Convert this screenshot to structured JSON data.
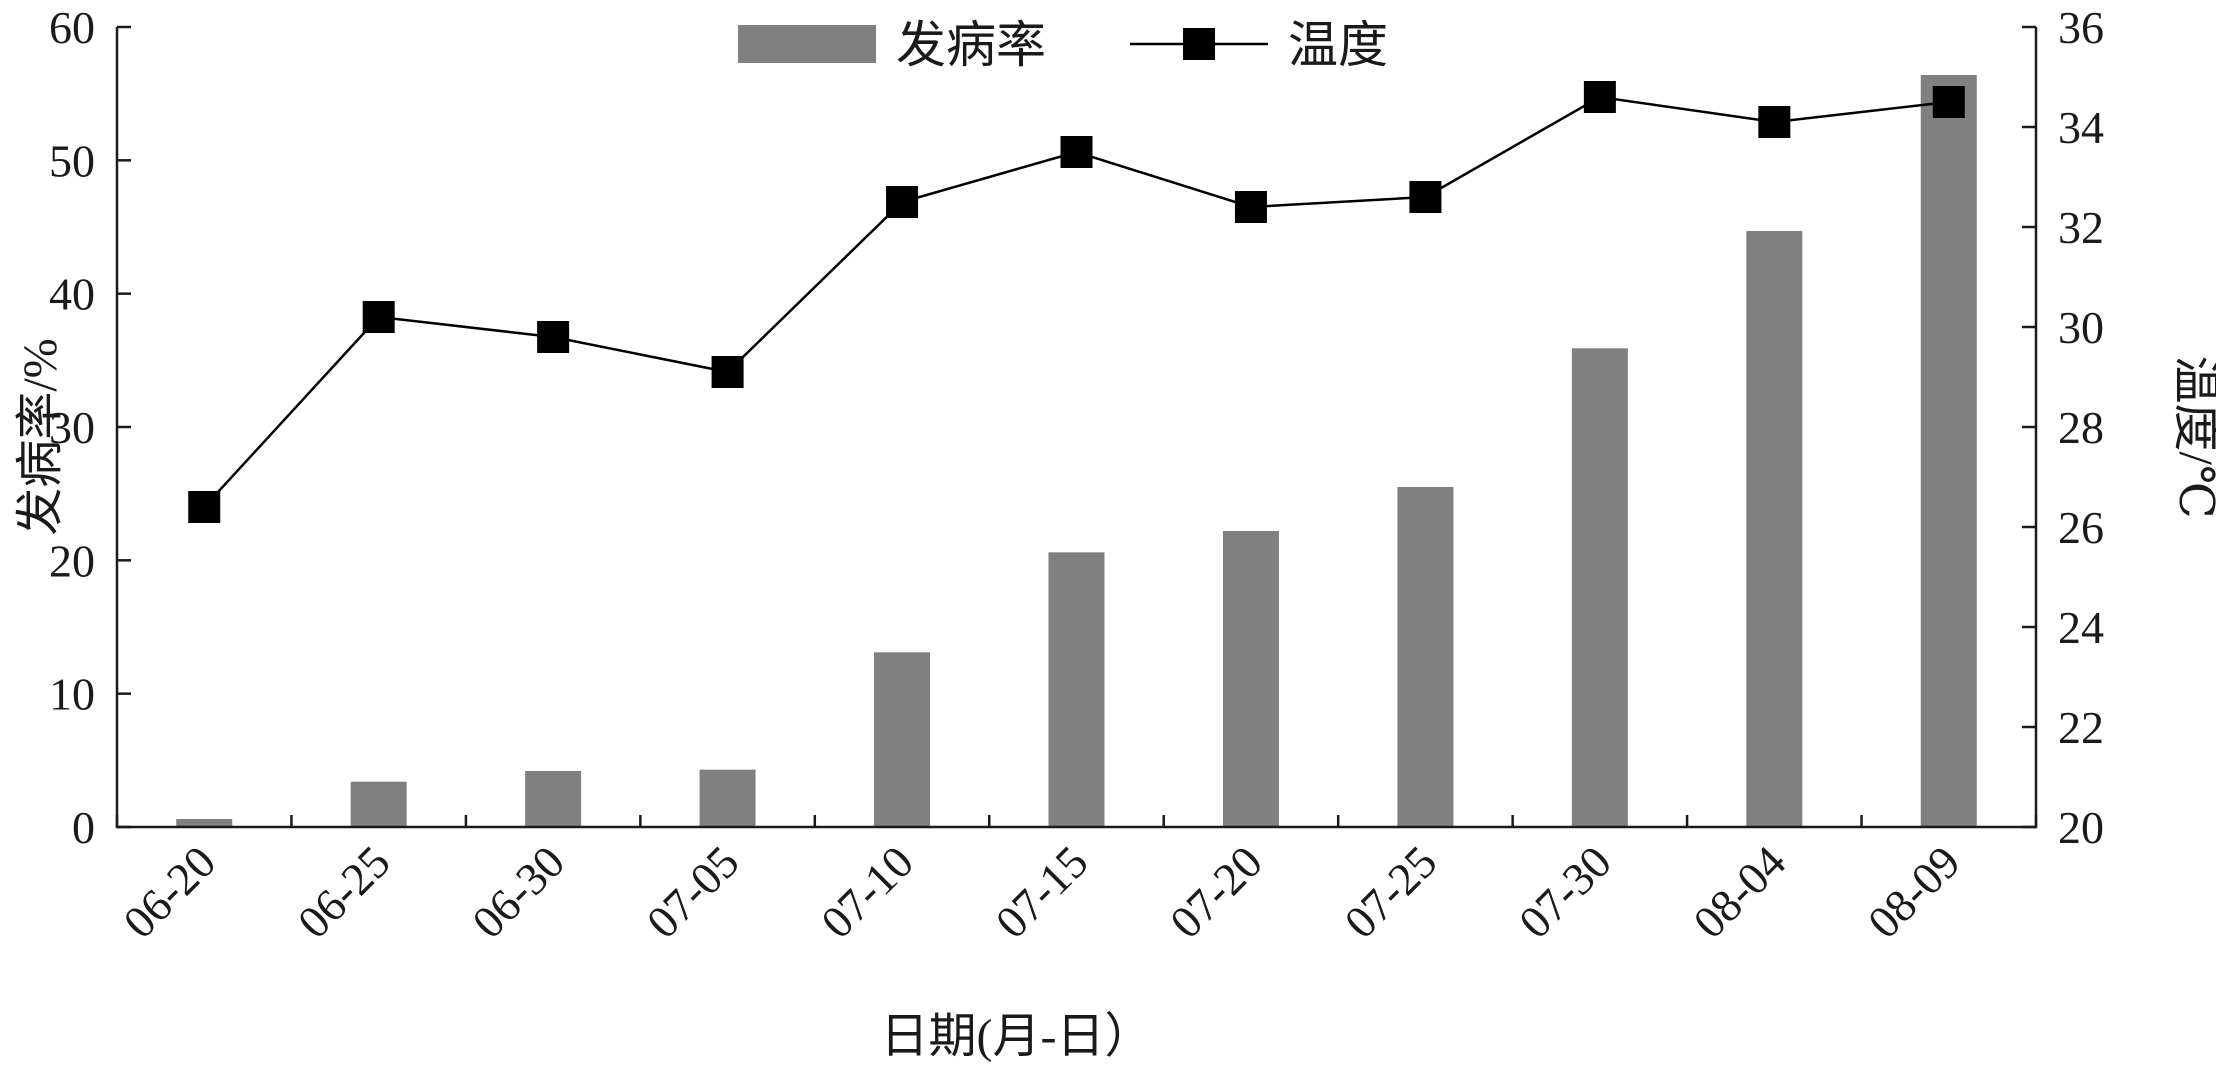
{
  "chart_data": {
    "type": "bar",
    "categories": [
      "06-20",
      "06-25",
      "06-30",
      "07-05",
      "07-10",
      "07-15",
      "07-20",
      "07-25",
      "07-30",
      "08-04",
      "08-09"
    ],
    "series": [
      {
        "name": "发病率",
        "type": "bar",
        "axis": "left",
        "color": "#808080",
        "values": [
          0.6,
          3.4,
          4.2,
          4.3,
          13.1,
          20.6,
          22.2,
          25.5,
          35.9,
          44.7,
          56.4
        ]
      },
      {
        "name": "温度",
        "type": "line",
        "axis": "right",
        "color": "#000000",
        "marker": "square",
        "values": [
          26.4,
          30.2,
          29.8,
          29.1,
          32.5,
          33.5,
          32.4,
          32.6,
          34.6,
          34.1,
          34.5
        ]
      }
    ],
    "xlabel": "日期(月-日）",
    "ylabel_left": "发病率/%",
    "ylabel_right": "温度/℃",
    "ylim_left": [
      0,
      60
    ],
    "yticks_left": [
      "0",
      "10",
      "20",
      "30",
      "40",
      "50",
      "60"
    ],
    "ylim_right": [
      20,
      36
    ],
    "yticks_right": [
      "20",
      "22",
      "24",
      "26",
      "28",
      "30",
      "32",
      "34",
      "36"
    ],
    "grid": false,
    "legend_position": "top-center"
  }
}
